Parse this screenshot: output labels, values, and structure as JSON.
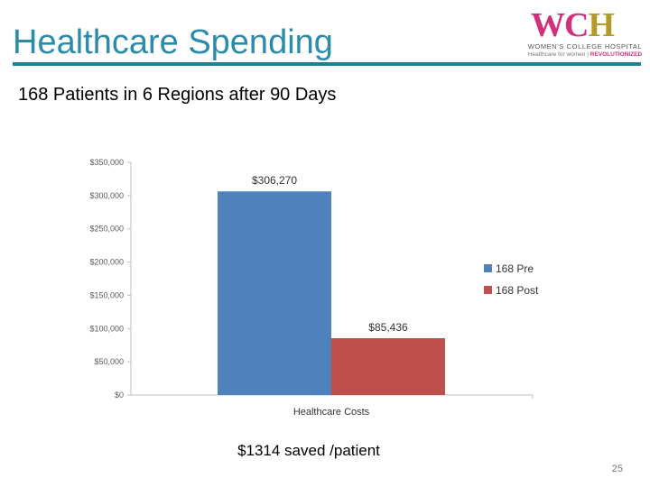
{
  "slide": {
    "title": "Healthcare Spending",
    "subtitle": "168 Patients in 6 Regions after 90 Days",
    "caption": "$1314 saved /patient",
    "page_number": "25"
  },
  "logo": {
    "mark_w": "W",
    "mark_c": "C",
    "mark_h": "H",
    "org_name": "WOMEN'S COLLEGE HOSPITAL",
    "tagline_left": "Healthcare for women",
    "tagline_sep": "|",
    "tagline_right": "REVOLUTIONIZED",
    "colors": {
      "primary": "#d2307c",
      "accent": "#b49a2a"
    }
  },
  "chart_data": {
    "type": "bar",
    "categories": [
      "Healthcare Costs"
    ],
    "series": [
      {
        "name": "168 Pre",
        "values": [
          306270
        ],
        "label": "$306,270",
        "color": "#4f81bd"
      },
      {
        "name": "168 Post",
        "values": [
          85436
        ],
        "label": "$85,436",
        "color": "#c0504d"
      }
    ],
    "ylim": [
      0,
      350000
    ],
    "yticks": [
      "$0",
      "$50,000",
      "$100,000",
      "$150,000",
      "$200,000",
      "$250,000",
      "$300,000",
      "$350,000"
    ],
    "xlabel": "Healthcare Costs",
    "legend_position": "right"
  }
}
